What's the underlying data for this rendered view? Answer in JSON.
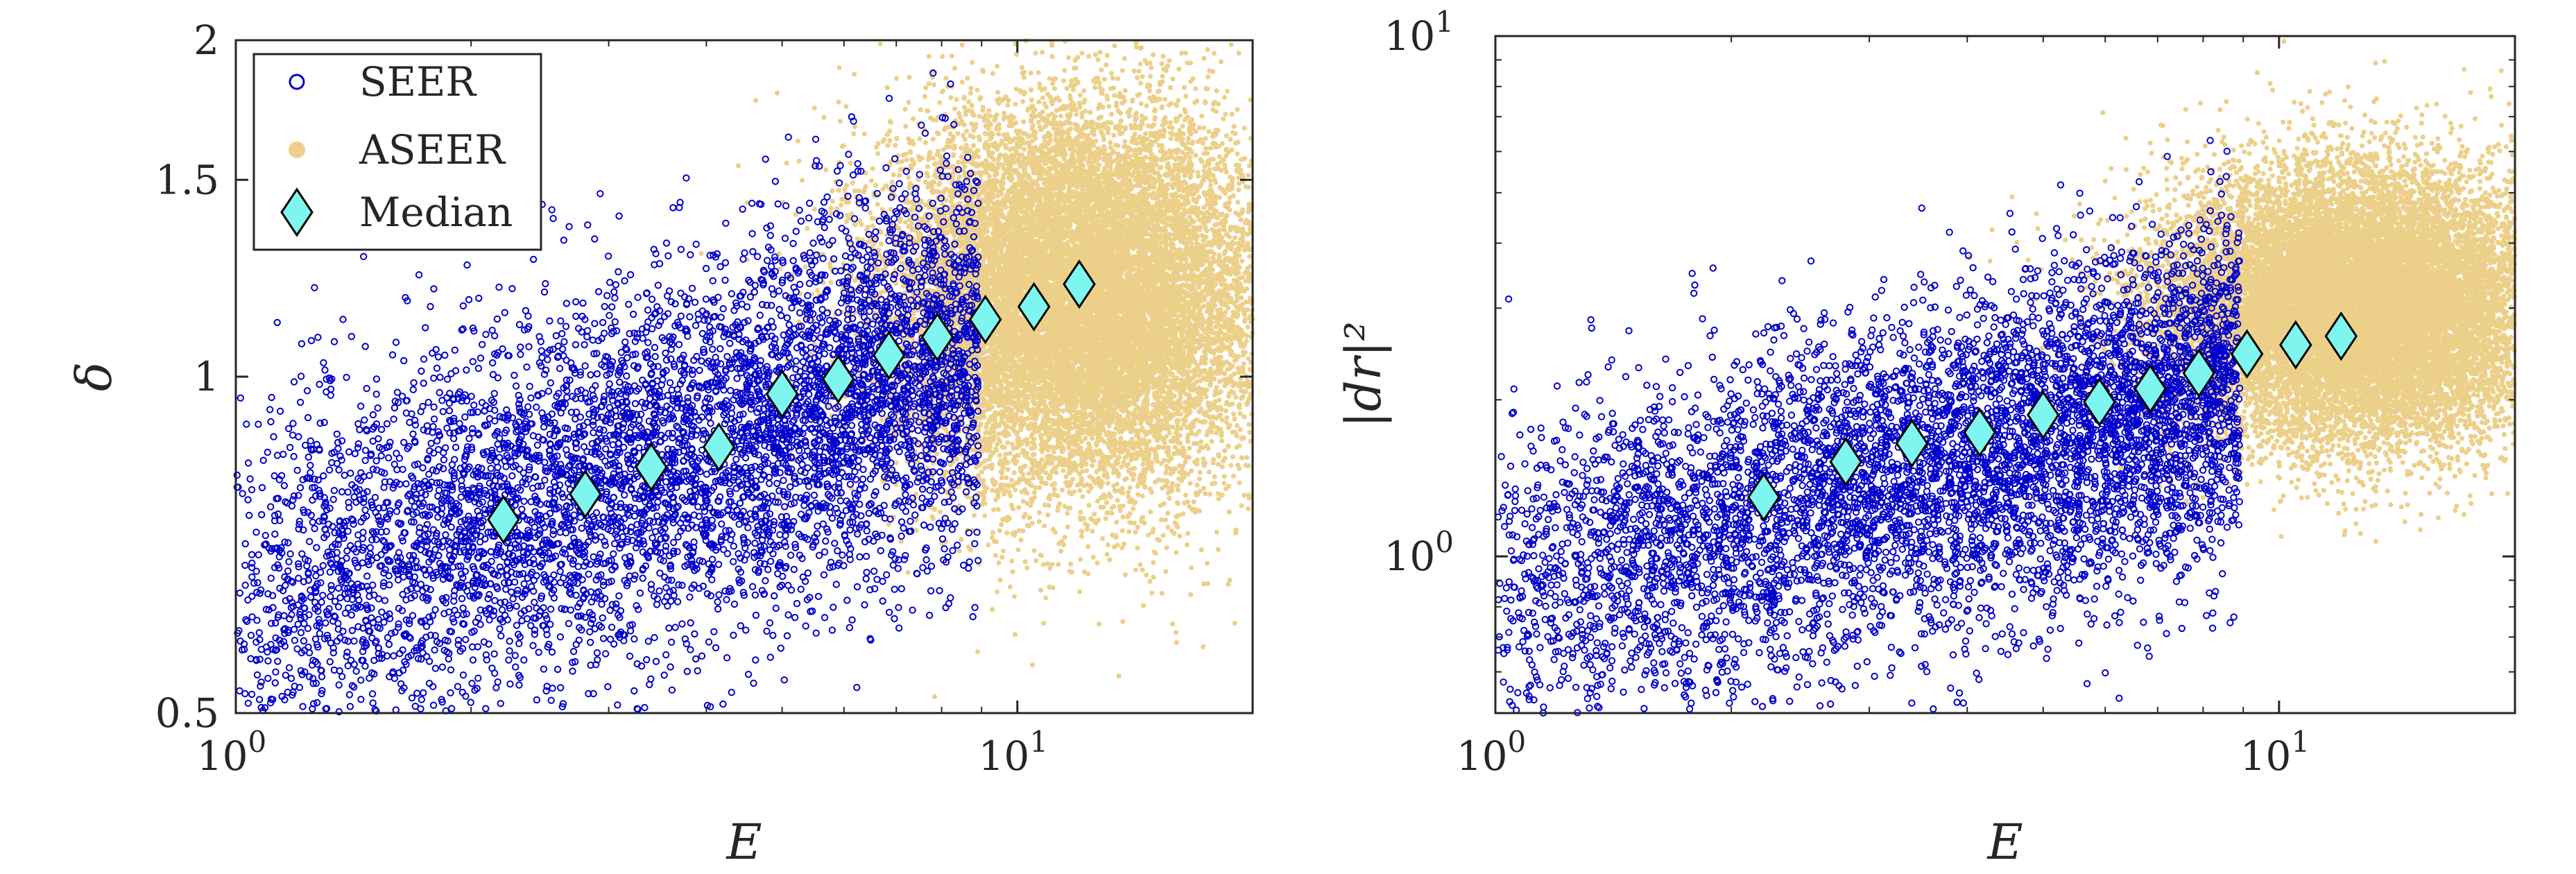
{
  "colors": {
    "seer": "#0000cc",
    "aseer": "#ecd08a",
    "median_fill": "#7ff5f0",
    "median_edge": "#000000",
    "axis": "#262626"
  },
  "chart_data": [
    {
      "type": "scatter",
      "xscale": "log",
      "yscale": "log",
      "xlim": [
        1,
        20
      ],
      "ylim": [
        0.5,
        2
      ],
      "xlabel": "E",
      "ylabel": "δ",
      "xticks": [
        {
          "value": 1,
          "base": "10",
          "exp": "0"
        },
        {
          "value": 10,
          "base": "10",
          "exp": "1"
        }
      ],
      "yticks": [
        {
          "value": 0.5,
          "label": "0.5"
        },
        {
          "value": 1,
          "label": "1"
        },
        {
          "value": 1.5,
          "label": "1.5"
        },
        {
          "value": 2,
          "label": "2"
        }
      ],
      "grid": false,
      "legend": {
        "placement": "top-left",
        "entries": [
          {
            "label": "SEER",
            "marker": "open-circle",
            "color": "#0000cc"
          },
          {
            "label": "ASEER",
            "marker": "filled-circle",
            "color": "#ecd08a"
          },
          {
            "label": "Median",
            "marker": "diamond",
            "color": "#7ff5f0"
          }
        ]
      },
      "series": [
        {
          "name": "SEER",
          "marker": "open-circle",
          "approx_points": 6000,
          "log10_x_range": [
            0,
            0.95
          ],
          "log10_y_center_intercept": -0.2,
          "log10_y_center_slope": 0.23,
          "log10_y_spread": 0.085
        },
        {
          "name": "ASEER",
          "marker": "filled-circle",
          "approx_points": 16000,
          "log10_x_center": 1.08,
          "log10_x_spread": 0.12,
          "log10_y_center": 0.07,
          "log10_y_spread": 0.085
        },
        {
          "name": "Median",
          "marker": "diamond",
          "x": [
            2.2,
            2.8,
            3.4,
            4.15,
            5.0,
            5.9,
            6.85,
            7.9,
            9.1,
            10.5,
            12.0
          ],
          "y": [
            0.745,
            0.785,
            0.83,
            0.865,
            0.965,
            0.995,
            1.045,
            1.085,
            1.125,
            1.155,
            1.21
          ]
        }
      ]
    },
    {
      "type": "scatter",
      "xscale": "log",
      "yscale": "log",
      "xlim": [
        1,
        20
      ],
      "ylim": [
        0.5,
        10
      ],
      "xlabel": "E",
      "ylabel": "|dr|²",
      "xticks": [
        {
          "value": 1,
          "base": "10",
          "exp": "0"
        },
        {
          "value": 10,
          "base": "10",
          "exp": "1"
        }
      ],
      "yticks": [
        {
          "value": 1,
          "base": "10",
          "exp": "0"
        },
        {
          "value": 10,
          "base": "10",
          "exp": "1"
        }
      ],
      "grid": false,
      "series": [
        {
          "name": "SEER",
          "marker": "open-circle",
          "approx_points": 6000,
          "log10_x_range": [
            0,
            0.95
          ],
          "log10_y_center_intercept": -0.07,
          "log10_y_center_slope": 0.42,
          "log10_y_spread": 0.16
        },
        {
          "name": "ASEER",
          "marker": "filled-circle",
          "approx_points": 16000,
          "log10_x_center": 1.1,
          "log10_x_spread": 0.12,
          "log10_y_center": 0.48,
          "log10_y_spread": 0.13
        },
        {
          "name": "Median",
          "marker": "diamond",
          "x": [
            2.2,
            2.8,
            3.4,
            4.15,
            5.0,
            5.9,
            6.85,
            7.9,
            9.1,
            10.5,
            12.0
          ],
          "y": [
            1.3,
            1.52,
            1.65,
            1.73,
            1.87,
            1.98,
            2.1,
            2.25,
            2.45,
            2.55,
            2.65
          ]
        }
      ]
    }
  ]
}
